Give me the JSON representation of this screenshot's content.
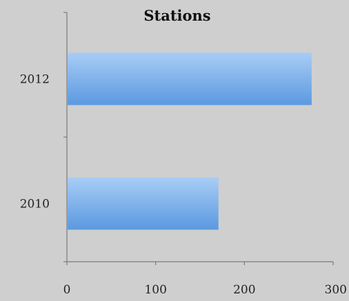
{
  "chart_data": {
    "type": "bar",
    "orientation": "horizontal",
    "title": "Stations",
    "categories": [
      "2010",
      "2012"
    ],
    "values": [
      170,
      275
    ],
    "xlim": [
      0,
      300
    ],
    "x_ticks": [
      "0",
      "100",
      "200",
      "300"
    ],
    "xlabel": "",
    "ylabel": "",
    "grid": false,
    "legend": "none",
    "bar_color_top": "#a8cdf5",
    "bar_color_bottom": "#5b99e0",
    "background": "#cfcfcf"
  }
}
